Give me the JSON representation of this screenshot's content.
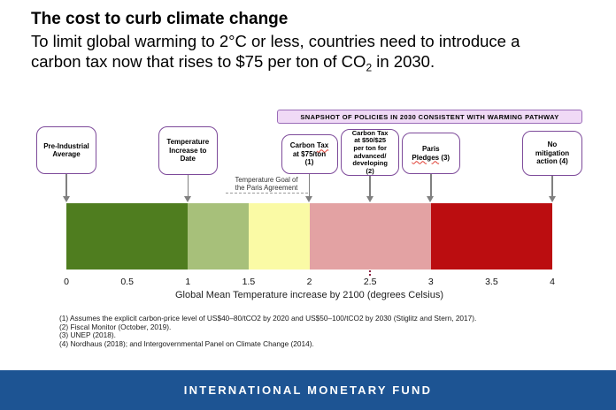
{
  "header": {
    "title": "The cost to curb climate change",
    "subtitle_pre": "To limit global warming to 2°C or less, countries need to introduce a carbon tax now that rises to $75 per ton of CO",
    "subtitle_sub": "2",
    "subtitle_post": " in 2030."
  },
  "banner": {
    "text": "SNAPSHOT OF POLICIES IN 2030 CONSISTENT WITH WARMING PATHWAY"
  },
  "chart_data": {
    "type": "bar",
    "orientation": "horizontal-scale",
    "xlabel": "Global Mean Temperature increase by 2100 (degrees Celsius)",
    "xlim": [
      0,
      4
    ],
    "xticks": [
      0,
      0.5,
      1,
      1.5,
      2,
      2.5,
      3,
      3.5,
      4
    ],
    "xtick_labels": [
      "0",
      "0.5",
      "1",
      "1.5",
      "2",
      "2.5",
      "3",
      "3.5",
      "4"
    ],
    "grid": false,
    "segments": [
      {
        "from": 0,
        "to": 1,
        "color": "#4f7d1f"
      },
      {
        "from": 1,
        "to": 1.5,
        "color": "#a7c07a"
      },
      {
        "from": 1.5,
        "to": 2,
        "color": "#fafaa5"
      },
      {
        "from": 2,
        "to": 3,
        "color": "#e3a2a3"
      },
      {
        "from": 3,
        "to": 4,
        "color": "#bb0d10"
      }
    ],
    "annotations": [
      {
        "label": "Pre-Industrial Average",
        "lines": [
          "Pre-Industrial",
          "Average"
        ],
        "value": 0
      },
      {
        "label": "Temperature Increase to Date",
        "lines": [
          "Temperature",
          "Increase to",
          "Date"
        ],
        "value": 1
      },
      {
        "label": "Carbon Tax at $75/ton (1)",
        "lines": [
          "Carbon Tax",
          "at $75/ton",
          "(1)"
        ],
        "value": 2,
        "squiggle": [
          "Tax"
        ]
      },
      {
        "label": "Carbon Tax at $50/$25 per ton for advanced/developing (2)",
        "lines": [
          "Carbon Tax",
          "at $50/$25",
          "per ton for",
          "advanced/",
          "developing",
          "(2)"
        ],
        "value": 2.5,
        "dotted_line": true
      },
      {
        "label": "Paris Pledges (3)",
        "lines": [
          "Paris",
          "Pledges (3)"
        ],
        "value": 3,
        "squiggle": [
          "Pledges"
        ]
      },
      {
        "label": "No mitigation action (4)",
        "lines": [
          "No",
          "mitigation",
          "action (4)"
        ],
        "value": 4
      }
    ],
    "range_note": {
      "lines": [
        "Temperature Goal of",
        "the Paris Agreement"
      ],
      "from": 1.5,
      "to": 2
    }
  },
  "footnotes": [
    "(1) Assumes the explicit carbon-price level of US$40–80/tCO2 by 2020 and US$50–100/tCO2 by 2030 (Stiglitz and Stern, 2017).",
    "(2) Fiscal Monitor (October, 2019).",
    "(3) UNEP (2018).",
    "(4) Nordhaus (2018); and Intergovernmental Panel on Climate Change (2014)."
  ],
  "footer": {
    "text": "INTERNATIONAL MONETARY FUND"
  },
  "colors": {
    "banner_fill": "#f0daf6",
    "banner_border": "#9a6cb8",
    "box_border": "#7d4a9a",
    "arrow": "#808080",
    "dotted_line": "#8b2242",
    "squiggle": "#e03c31",
    "footer_bg": "#1d5493"
  }
}
